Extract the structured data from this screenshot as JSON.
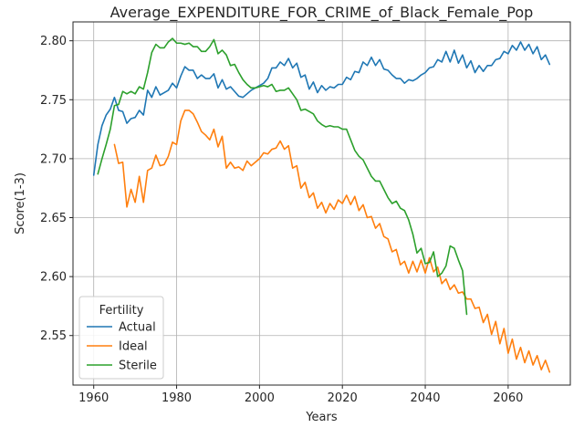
{
  "chart_data": {
    "type": "line",
    "title": "Average_EXPENDITURE_FOR_CRIME_of_Black_Female_Pop",
    "xlabel": "Years",
    "ylabel": "Score(1-3)",
    "xlim": [
      1955,
      2075
    ],
    "ylim": [
      2.508,
      2.816
    ],
    "xticks": [
      1960,
      1980,
      2000,
      2020,
      2040,
      2060
    ],
    "yticks": [
      2.55,
      2.6,
      2.65,
      2.7,
      2.75,
      2.8
    ],
    "xtick_labels": [
      "1960",
      "1980",
      "2000",
      "2020",
      "2040",
      "2060"
    ],
    "ytick_labels": [
      "2.55",
      "2.60",
      "2.65",
      "2.70",
      "2.75",
      "2.80"
    ],
    "grid": true,
    "legend": {
      "title": "Fertility",
      "placement": "lower-left"
    },
    "series": [
      {
        "name": "Actual",
        "color": "#1f77b4",
        "x": [
          1960,
          1961,
          1962,
          1963,
          1964,
          1965,
          1966,
          1967,
          1968,
          1969,
          1970,
          1971,
          1972,
          1973,
          1974,
          1975,
          1976,
          1977,
          1978,
          1979,
          1980,
          1981,
          1982,
          1983,
          1984,
          1985,
          1986,
          1987,
          1988,
          1989,
          1990,
          1991,
          1992,
          1993,
          1994,
          1995,
          1996,
          1997,
          1998,
          1999,
          2000,
          2001,
          2002,
          2003,
          2004,
          2005,
          2006,
          2007,
          2008,
          2009,
          2010,
          2011,
          2012,
          2013,
          2014,
          2015,
          2016,
          2017,
          2018,
          2019,
          2020,
          2021,
          2022,
          2023,
          2024,
          2025,
          2026,
          2027,
          2028,
          2029,
          2030,
          2031,
          2032,
          2033,
          2034,
          2035,
          2036,
          2037,
          2038,
          2039,
          2040,
          2041,
          2042,
          2043,
          2044,
          2045,
          2046,
          2047,
          2048,
          2049,
          2050,
          2051,
          2052,
          2053,
          2054,
          2055,
          2056,
          2057,
          2058,
          2059,
          2060,
          2061,
          2062,
          2063,
          2064,
          2065,
          2066,
          2067,
          2068,
          2069,
          2070
        ],
        "values": [
          2.686,
          2.712,
          2.728,
          2.737,
          2.742,
          2.752,
          2.741,
          2.74,
          2.73,
          2.734,
          2.735,
          2.741,
          2.737,
          2.758,
          2.752,
          2.761,
          2.754,
          2.756,
          2.758,
          2.764,
          2.76,
          2.77,
          2.778,
          2.775,
          2.775,
          2.768,
          2.771,
          2.768,
          2.768,
          2.772,
          2.76,
          2.767,
          2.759,
          2.761,
          2.757,
          2.753,
          2.752,
          2.755,
          2.758,
          2.76,
          2.762,
          2.764,
          2.768,
          2.777,
          2.777,
          2.782,
          2.779,
          2.785,
          2.777,
          2.781,
          2.769,
          2.771,
          2.759,
          2.765,
          2.756,
          2.762,
          2.758,
          2.761,
          2.76,
          2.763,
          2.763,
          2.769,
          2.767,
          2.774,
          2.773,
          2.782,
          2.779,
          2.786,
          2.779,
          2.784,
          2.776,
          2.775,
          2.771,
          2.768,
          2.768,
          2.764,
          2.767,
          2.766,
          2.768,
          2.771,
          2.773,
          2.777,
          2.778,
          2.784,
          2.782,
          2.791,
          2.782,
          2.792,
          2.781,
          2.788,
          2.777,
          2.783,
          2.773,
          2.779,
          2.774,
          2.779,
          2.779,
          2.784,
          2.785,
          2.791,
          2.789,
          2.796,
          2.792,
          2.799,
          2.792,
          2.797,
          2.789,
          2.795,
          2.784,
          2.788,
          2.78
        ]
      },
      {
        "name": "Ideal",
        "color": "#ff7f0e",
        "x": [
          1965,
          1966,
          1967,
          1968,
          1969,
          1970,
          1971,
          1972,
          1973,
          1974,
          1975,
          1976,
          1977,
          1978,
          1979,
          1980,
          1981,
          1982,
          1983,
          1984,
          1985,
          1986,
          1987,
          1988,
          1989,
          1990,
          1991,
          1992,
          1993,
          1994,
          1995,
          1996,
          1997,
          1998,
          1999,
          2000,
          2001,
          2002,
          2003,
          2004,
          2005,
          2006,
          2007,
          2008,
          2009,
          2010,
          2011,
          2012,
          2013,
          2014,
          2015,
          2016,
          2017,
          2018,
          2019,
          2020,
          2021,
          2022,
          2023,
          2024,
          2025,
          2026,
          2027,
          2028,
          2029,
          2030,
          2031,
          2032,
          2033,
          2034,
          2035,
          2036,
          2037,
          2038,
          2039,
          2040,
          2041,
          2042,
          2043,
          2044,
          2045,
          2046,
          2047,
          2048,
          2049,
          2050,
          2051,
          2052,
          2053,
          2054,
          2055,
          2056,
          2057,
          2058,
          2059,
          2060,
          2061,
          2062,
          2063,
          2064,
          2065,
          2066,
          2067,
          2068,
          2069,
          2070
        ],
        "values": [
          2.712,
          2.696,
          2.697,
          2.659,
          2.674,
          2.663,
          2.685,
          2.663,
          2.69,
          2.692,
          2.703,
          2.694,
          2.695,
          2.702,
          2.714,
          2.712,
          2.732,
          2.741,
          2.741,
          2.738,
          2.731,
          2.723,
          2.72,
          2.716,
          2.725,
          2.71,
          2.719,
          2.692,
          2.697,
          2.692,
          2.693,
          2.69,
          2.698,
          2.694,
          2.697,
          2.7,
          2.705,
          2.704,
          2.708,
          2.709,
          2.715,
          2.708,
          2.711,
          2.692,
          2.694,
          2.675,
          2.68,
          2.667,
          2.671,
          2.658,
          2.663,
          2.654,
          2.662,
          2.657,
          2.665,
          2.662,
          2.669,
          2.661,
          2.668,
          2.656,
          2.661,
          2.65,
          2.651,
          2.641,
          2.645,
          2.634,
          2.632,
          2.621,
          2.623,
          2.61,
          2.613,
          2.603,
          2.613,
          2.604,
          2.614,
          2.603,
          2.616,
          2.604,
          2.608,
          2.594,
          2.598,
          2.589,
          2.593,
          2.586,
          2.587,
          2.581,
          2.581,
          2.573,
          2.574,
          2.561,
          2.568,
          2.551,
          2.562,
          2.543,
          2.556,
          2.535,
          2.547,
          2.53,
          2.54,
          2.527,
          2.537,
          2.525,
          2.533,
          2.521,
          2.529,
          2.519
        ]
      },
      {
        "name": "Sterile",
        "color": "#2ca02c",
        "x": [
          1961,
          1962,
          1963,
          1964,
          1965,
          1966,
          1967,
          1968,
          1969,
          1970,
          1971,
          1972,
          1973,
          1974,
          1975,
          1976,
          1977,
          1978,
          1979,
          1980,
          1981,
          1982,
          1983,
          1984,
          1985,
          1986,
          1987,
          1988,
          1989,
          1990,
          1991,
          1992,
          1993,
          1994,
          1995,
          1996,
          1997,
          1998,
          1999,
          2000,
          2001,
          2002,
          2003,
          2004,
          2005,
          2006,
          2007,
          2008,
          2009,
          2010,
          2011,
          2012,
          2013,
          2014,
          2015,
          2016,
          2017,
          2018,
          2019,
          2020,
          2021,
          2022,
          2023,
          2024,
          2025,
          2026,
          2027,
          2028,
          2029,
          2030,
          2031,
          2032,
          2033,
          2034,
          2035,
          2036,
          2037,
          2038,
          2039,
          2040,
          2041,
          2042,
          2043,
          2044,
          2045,
          2046,
          2047,
          2048,
          2049,
          2050
        ],
        "values": [
          2.687,
          2.7,
          2.712,
          2.725,
          2.745,
          2.746,
          2.757,
          2.755,
          2.757,
          2.755,
          2.761,
          2.759,
          2.773,
          2.79,
          2.797,
          2.794,
          2.794,
          2.799,
          2.802,
          2.798,
          2.798,
          2.797,
          2.798,
          2.795,
          2.795,
          2.791,
          2.791,
          2.795,
          2.801,
          2.789,
          2.792,
          2.788,
          2.779,
          2.78,
          2.773,
          2.767,
          2.763,
          2.76,
          2.76,
          2.761,
          2.762,
          2.761,
          2.763,
          2.757,
          2.758,
          2.758,
          2.76,
          2.755,
          2.75,
          2.741,
          2.742,
          2.74,
          2.738,
          2.732,
          2.729,
          2.727,
          2.728,
          2.727,
          2.727,
          2.725,
          2.725,
          2.716,
          2.707,
          2.702,
          2.699,
          2.692,
          2.685,
          2.681,
          2.681,
          2.674,
          2.667,
          2.662,
          2.664,
          2.658,
          2.656,
          2.648,
          2.636,
          2.62,
          2.624,
          2.611,
          2.612,
          2.621,
          2.6,
          2.603,
          2.609,
          2.626,
          2.624,
          2.614,
          2.605,
          2.568
        ]
      }
    ]
  }
}
